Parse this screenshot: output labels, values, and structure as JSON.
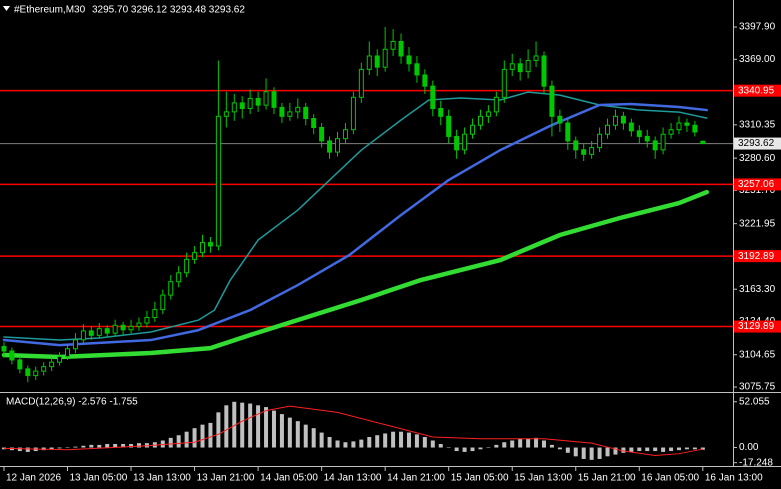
{
  "chart_data": [
    {
      "type": "candlestick",
      "title": "#Ethereum,M30",
      "quote": "3295.70 3296.12 3293.48 3293.62",
      "color": "#00c800",
      "x": [
        0,
        2,
        4,
        6,
        8,
        10,
        12,
        14,
        16,
        18,
        20,
        22,
        24,
        26,
        28,
        30,
        32,
        34,
        36,
        38,
        40,
        42,
        44,
        46,
        48,
        50,
        52,
        54,
        56,
        58,
        60,
        62,
        64,
        66,
        68,
        70,
        72,
        74,
        76,
        78,
        80,
        82,
        84,
        86,
        88,
        90,
        92,
        94,
        96,
        98,
        100,
        102,
        104,
        106,
        108,
        110,
        112,
        114,
        116,
        118,
        120,
        122,
        124,
        126,
        128,
        130,
        132,
        134,
        136,
        138,
        140,
        142,
        144,
        146,
        148,
        150,
        152,
        154,
        156,
        158,
        160,
        162,
        164,
        166,
        168,
        170,
        172,
        174,
        176
      ],
      "open": [
        3112,
        3108,
        3100,
        3092,
        3086,
        3090,
        3094,
        3098,
        3103,
        3110,
        3118,
        3126,
        3122,
        3128,
        3124,
        3131,
        3127,
        3130,
        3133,
        3138,
        3145,
        3158,
        3170,
        3178,
        3190,
        3196,
        3205,
        3202,
        3318,
        3322,
        3330,
        3325,
        3334,
        3328,
        3340,
        3326,
        3318,
        3322,
        3326,
        3316,
        3308,
        3296,
        3286,
        3298,
        3306,
        3335,
        3360,
        3372,
        3362,
        3378,
        3385,
        3372,
        3365,
        3355,
        3345,
        3325,
        3318,
        3300,
        3288,
        3302,
        3310,
        3318,
        3322,
        3335,
        3360,
        3365,
        3358,
        3368,
        3372,
        3345,
        3318,
        3312,
        3296,
        3288,
        3284,
        3290,
        3302,
        3310,
        3318,
        3312,
        3305,
        3300,
        3296,
        3288,
        3302,
        3306,
        3312,
        3310,
        3295.7
      ],
      "high": [
        3116,
        3111,
        3103,
        3095,
        3094,
        3098,
        3102,
        3107,
        3114,
        3124,
        3132,
        3130,
        3133,
        3131,
        3136,
        3134,
        3136,
        3138,
        3144,
        3152,
        3163,
        3176,
        3184,
        3196,
        3202,
        3212,
        3210,
        3368,
        3340,
        3338,
        3336,
        3342,
        3340,
        3352,
        3344,
        3330,
        3330,
        3334,
        3330,
        3320,
        3312,
        3300,
        3304,
        3312,
        3340,
        3366,
        3385,
        3378,
        3398,
        3396,
        3392,
        3380,
        3372,
        3360,
        3350,
        3332,
        3324,
        3306,
        3308,
        3316,
        3324,
        3328,
        3340,
        3368,
        3374,
        3370,
        3378,
        3385,
        3376,
        3350,
        3324,
        3316,
        3300,
        3294,
        3296,
        3308,
        3316,
        3324,
        3322,
        3316,
        3310,
        3306,
        3300,
        3308,
        3312,
        3318,
        3316,
        3314,
        3296.12
      ],
      "low": [
        3102,
        3096,
        3088,
        3080,
        3082,
        3086,
        3090,
        3095,
        3100,
        3106,
        3114,
        3118,
        3119,
        3120,
        3121,
        3122,
        3124,
        3126,
        3129,
        3134,
        3141,
        3154,
        3165,
        3174,
        3186,
        3192,
        3196,
        3198,
        3308,
        3314,
        3316,
        3320,
        3322,
        3324,
        3320,
        3312,
        3314,
        3316,
        3310,
        3302,
        3290,
        3280,
        3282,
        3294,
        3302,
        3330,
        3355,
        3354,
        3358,
        3372,
        3365,
        3358,
        3348,
        3338,
        3318,
        3310,
        3294,
        3280,
        3284,
        3298,
        3306,
        3312,
        3318,
        3330,
        3354,
        3350,
        3352,
        3362,
        3338,
        3300,
        3304,
        3288,
        3280,
        3278,
        3280,
        3286,
        3298,
        3306,
        3306,
        3300,
        3294,
        3290,
        3280,
        3284,
        3298,
        3302,
        3304,
        3300,
        3293.48
      ],
      "close": [
        3108,
        3100,
        3092,
        3086,
        3090,
        3094,
        3098,
        3103,
        3110,
        3118,
        3126,
        3122,
        3128,
        3124,
        3131,
        3127,
        3130,
        3133,
        3138,
        3145,
        3158,
        3170,
        3178,
        3190,
        3196,
        3205,
        3202,
        3318,
        3322,
        3330,
        3325,
        3334,
        3328,
        3340,
        3326,
        3318,
        3322,
        3326,
        3316,
        3308,
        3296,
        3286,
        3298,
        3306,
        3335,
        3360,
        3372,
        3362,
        3378,
        3385,
        3372,
        3365,
        3355,
        3345,
        3325,
        3318,
        3300,
        3288,
        3302,
        3310,
        3318,
        3322,
        3335,
        3360,
        3365,
        3358,
        3368,
        3372,
        3345,
        3318,
        3312,
        3296,
        3288,
        3284,
        3290,
        3302,
        3310,
        3318,
        3312,
        3305,
        3300,
        3296,
        3288,
        3302,
        3306,
        3312,
        3310,
        3304,
        3293.62
      ],
      "lines": [
        {
          "color": "#1e9a9a",
          "x": [
            0,
            14,
            24,
            37,
            49,
            53,
            57,
            64,
            74,
            82,
            90,
            100,
            107,
            115,
            125,
            132,
            140,
            150,
            160,
            170,
            177
          ],
          "values": [
            3120.5,
            3117.8,
            3119.6,
            3125.0,
            3135.7,
            3144.6,
            3171.5,
            3207.3,
            3234.1,
            3261.0,
            3287.8,
            3314.7,
            3332.6,
            3334.4,
            3332.6,
            3339.7,
            3337.0,
            3328.1,
            3323.6,
            3321.8,
            3316.4
          ]
        },
        {
          "color": "#4169e1",
          "x": [
            0,
            14,
            37,
            49,
            62,
            74,
            87,
            100,
            112,
            125,
            138,
            150,
            158,
            170,
            177
          ],
          "values": [
            3117.8,
            3113.3,
            3117.8,
            3126.7,
            3144.6,
            3167.0,
            3193.9,
            3229.7,
            3261.0,
            3287.8,
            3310.2,
            3328.1,
            3329.0,
            3326.3,
            3323.6
          ]
        },
        {
          "color": "#32dc32",
          "x": [
            0,
            14,
            37,
            52,
            62,
            74,
            90,
            105,
            125,
            140,
            155,
            170,
            177
          ],
          "values": [
            3104.4,
            3102.6,
            3106.2,
            3110.6,
            3122.3,
            3135.7,
            3153.6,
            3171.5,
            3189.4,
            3211.8,
            3226.9,
            3240.4,
            3250.2
          ]
        }
      ],
      "levels": {
        "color": "#ff0000",
        "values": [
          3340.95,
          3257.06,
          3192.89,
          3129.89
        ]
      },
      "price_line": 3293.62,
      "xlim": [
        -1,
        183.6
      ],
      "ylim": [
        3072.2,
        3420.3
      ],
      "yticks": [
        {
          "value": 3397.9,
          "label": "3397.90"
        },
        {
          "value": 3369,
          "label": "3369.00"
        },
        3310.35,
        {
          "value": 3280.6,
          "label": "3280.60"
        },
        {
          "value": 3251.7,
          "label": "3251.70"
        },
        3221.95,
        {
          "value": 3163.3,
          "label": "3163.30"
        },
        {
          "value": 3134.4,
          "label": "3134.40"
        },
        3104.65,
        3075.75
      ],
      "xticks": [
        {
          "value": 0,
          "label": "12 Jan 2026"
        },
        {
          "value": 16,
          "label": "13 Jan 05:00"
        },
        {
          "value": 32,
          "label": "13 Jan 13:00"
        },
        {
          "value": 48,
          "label": "13 Jan 21:00"
        },
        {
          "value": 64,
          "label": "14 Jan 05:00"
        },
        {
          "value": 80,
          "label": "14 Jan 13:00"
        },
        {
          "value": 96,
          "label": "14 Jan 21:00"
        },
        {
          "value": 112,
          "label": "15 Jan 05:00"
        },
        {
          "value": 128,
          "label": "15 Jan 13:00"
        },
        {
          "value": 144,
          "label": "15 Jan 21:00"
        },
        {
          "value": 160,
          "label": "16 Jan 05:00"
        },
        {
          "value": 176,
          "label": "16 Jan 13:00"
        }
      ]
    },
    {
      "type": "macd",
      "title": "MACD(12,26,9) -2.576 -1.755",
      "color": "#c0c0c0",
      "x": [
        0,
        2,
        4,
        6,
        8,
        10,
        12,
        14,
        16,
        18,
        20,
        22,
        24,
        26,
        28,
        30,
        32,
        34,
        36,
        38,
        40,
        42,
        44,
        46,
        48,
        50,
        52,
        54,
        56,
        58,
        60,
        62,
        64,
        66,
        68,
        70,
        72,
        74,
        76,
        78,
        80,
        82,
        84,
        86,
        88,
        90,
        92,
        94,
        96,
        98,
        100,
        102,
        104,
        106,
        108,
        110,
        112,
        114,
        116,
        118,
        120,
        122,
        124,
        126,
        128,
        130,
        132,
        134,
        136,
        138,
        140,
        142,
        144,
        146,
        148,
        150,
        152,
        154,
        156,
        158,
        160,
        162,
        164,
        166,
        168,
        170,
        172,
        174,
        176
      ],
      "values": [
        -2,
        -3,
        -4,
        -5,
        -4,
        -3,
        -2,
        -1,
        0,
        1,
        2,
        3,
        3,
        4,
        4,
        4,
        4,
        5,
        5,
        6,
        8,
        11,
        14,
        18,
        22,
        26,
        28,
        40,
        48,
        52,
        51,
        50,
        48,
        46,
        42,
        38,
        34,
        30,
        26,
        22,
        17,
        12,
        8,
        6,
        7,
        9,
        12,
        14,
        16,
        18,
        18,
        17,
        15,
        12,
        8,
        4,
        0,
        -4,
        -5,
        -4,
        -2,
        0,
        3,
        6,
        8,
        10,
        10,
        11,
        8,
        3,
        -2,
        -6,
        -10,
        -13,
        -14,
        -13,
        -10,
        -8,
        -6,
        -5,
        -4,
        -4,
        -4,
        -5,
        -4,
        -3,
        -2,
        -2,
        -2.576
      ],
      "signal": {
        "color": "#ff2020",
        "x": [
          0,
          16,
          36,
          48,
          54,
          60,
          66,
          72,
          84,
          96,
          108,
          120,
          136,
          148,
          156,
          164,
          170,
          176
        ],
        "values": [
          -1,
          -2.5,
          2,
          6,
          15,
          30,
          42,
          47,
          40,
          26,
          12,
          10,
          10,
          5,
          -4,
          -9,
          -7,
          -1.755
        ]
      },
      "xlim": [
        -1,
        183.6
      ],
      "ylim": [
        -21,
        62
      ],
      "yticks": [
        52.055,
        {
          "value": 0,
          "label": "0.00"
        },
        -17.248
      ]
    }
  ]
}
